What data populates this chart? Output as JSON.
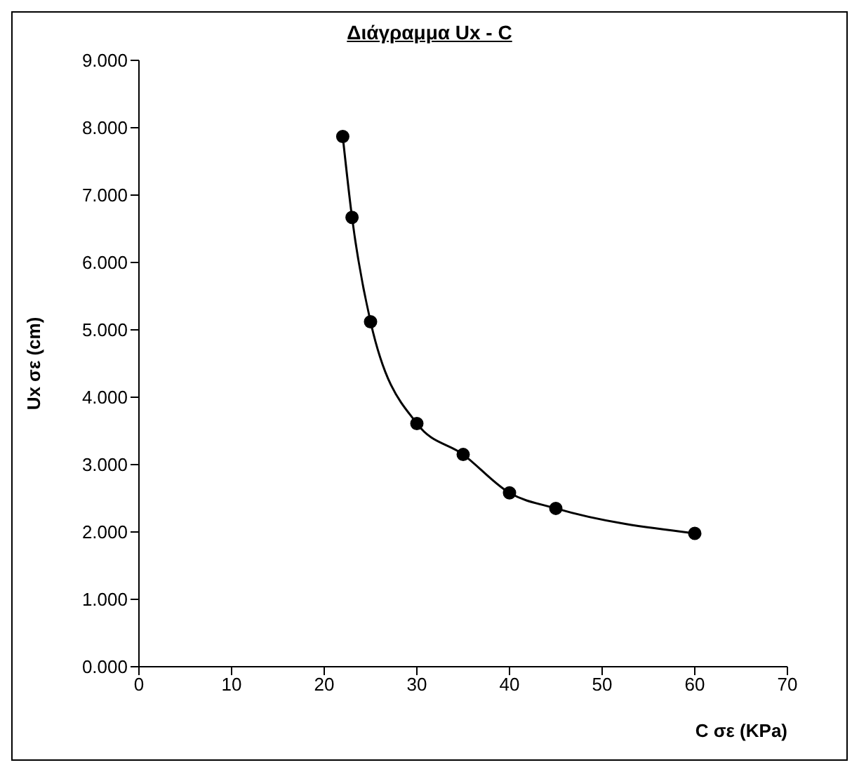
{
  "chart_data": {
    "type": "line",
    "title": "Διάγραμμα Ux - C",
    "xlabel": "C σε (KPa)",
    "ylabel": "Ux σε (cm)",
    "x": [
      22,
      23,
      25,
      30,
      35,
      40,
      45,
      60
    ],
    "series": [
      {
        "color": "#000000",
        "values": [
          7.87,
          6.67,
          5.12,
          3.61,
          3.15,
          2.58,
          2.35,
          1.98
        ]
      }
    ],
    "xlim": [
      0,
      70
    ],
    "xticks": [
      0,
      10,
      20,
      30,
      40,
      50,
      60,
      70
    ],
    "ylim": [
      0,
      9
    ],
    "yticks": [
      {
        "value": 0,
        "label": "0.000"
      },
      {
        "value": 1,
        "label": "1.000"
      },
      {
        "value": 2,
        "label": "2.000"
      },
      {
        "value": 3,
        "label": "3.000"
      },
      {
        "value": 4,
        "label": "4.000"
      },
      {
        "value": 5,
        "label": "5.000"
      },
      {
        "value": 6,
        "label": "6.000"
      },
      {
        "value": 7,
        "label": "7.000"
      },
      {
        "value": 8,
        "label": "8.000"
      },
      {
        "value": 9,
        "label": "9.000"
      }
    ],
    "grid": false,
    "legend": false,
    "marker": "circle",
    "line_style": "solid"
  }
}
